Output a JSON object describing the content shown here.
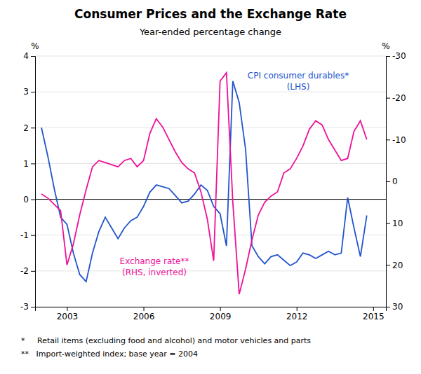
{
  "chart_data": {
    "type": "line",
    "title": "Consumer Prices and the Exchange Rate",
    "subtitle": "Year-ended percentage change",
    "y_label": "%",
    "y2_label": "%",
    "footnotes": [
      "*     Retail items (excluding food and alcohol) and motor vehicles and parts",
      "**   Import-weighted index; base year = 2004"
    ],
    "annotations": [
      {
        "text": "CPI consumer durables*\n(LHS)",
        "color": "#2255cc"
      },
      {
        "text": "Exchange rate**\n(RHS, inverted)",
        "color": "#ee1199"
      }
    ],
    "x": [
      2002.0,
      2002.25,
      2002.5,
      2002.75,
      2003.0,
      2003.25,
      2003.5,
      2003.75,
      2004.0,
      2004.25,
      2004.5,
      2004.75,
      2005.0,
      2005.25,
      2005.5,
      2005.75,
      2006.0,
      2006.25,
      2006.5,
      2006.75,
      2007.0,
      2007.25,
      2007.5,
      2007.75,
      2008.0,
      2008.25,
      2008.5,
      2008.75,
      2009.0,
      2009.25,
      2009.5,
      2009.75,
      2010.0,
      2010.25,
      2010.5,
      2010.75,
      2011.0,
      2011.25,
      2011.5,
      2011.75,
      2012.0,
      2012.25,
      2012.5,
      2012.75,
      2013.0,
      2013.25,
      2013.5,
      2013.75,
      2014.0,
      2014.25,
      2014.5,
      2014.75
    ],
    "series": [
      {
        "color": "#2255cc",
        "values": [
          2.0,
          1.2,
          0.3,
          -0.5,
          -0.7,
          -1.5,
          -2.1,
          -2.3,
          -1.5,
          -0.9,
          -0.5,
          -0.8,
          -1.1,
          -0.8,
          -0.6,
          -0.5,
          -0.2,
          0.2,
          0.4,
          0.35,
          0.3,
          0.1,
          -0.1,
          -0.05,
          0.15,
          0.4,
          0.25,
          -0.2,
          -0.4,
          -1.3,
          3.3,
          2.7,
          1.4,
          -1.3,
          -1.6,
          -1.8,
          -1.6,
          -1.55,
          -1.7,
          -1.85,
          -1.75,
          -1.5,
          -1.55,
          -1.65,
          -1.55,
          -1.45,
          -1.55,
          -1.5,
          0.05,
          -0.8,
          -1.6,
          -0.45
        ]
      },
      {
        "color": "#ee1199",
        "axis": "y2",
        "values": [
          3.0,
          4.0,
          5.5,
          7.0,
          20.0,
          15.0,
          8.0,
          2.0,
          -3.5,
          -5.0,
          -4.5,
          -4.0,
          -3.5,
          -5.0,
          -5.5,
          -3.5,
          -5.0,
          -11.5,
          -15.0,
          -13.0,
          -10.0,
          -7.0,
          -4.5,
          -3.0,
          -2.0,
          2.5,
          9.0,
          19.0,
          -24.0,
          -26.0,
          5.0,
          27.0,
          21.0,
          14.0,
          8.0,
          5.0,
          3.5,
          2.5,
          -2.0,
          -3.0,
          -5.5,
          -8.5,
          -12.5,
          -14.5,
          -13.5,
          -10.0,
          -7.5,
          -5.0,
          -5.5,
          -12.0,
          -14.5,
          -10.0
        ]
      }
    ],
    "xlim": [
      2001.75,
      2015.5
    ],
    "xticks": [
      2003,
      2006,
      2009,
      2012,
      2015
    ],
    "ylim": [
      -3,
      4
    ],
    "yticks": [
      -3,
      -2,
      -1,
      0,
      1,
      2,
      3,
      4
    ],
    "y2lim": [
      30,
      -30
    ],
    "y2ticks": [
      30,
      20,
      10,
      0,
      -10,
      -20,
      -30
    ],
    "grid": true
  }
}
